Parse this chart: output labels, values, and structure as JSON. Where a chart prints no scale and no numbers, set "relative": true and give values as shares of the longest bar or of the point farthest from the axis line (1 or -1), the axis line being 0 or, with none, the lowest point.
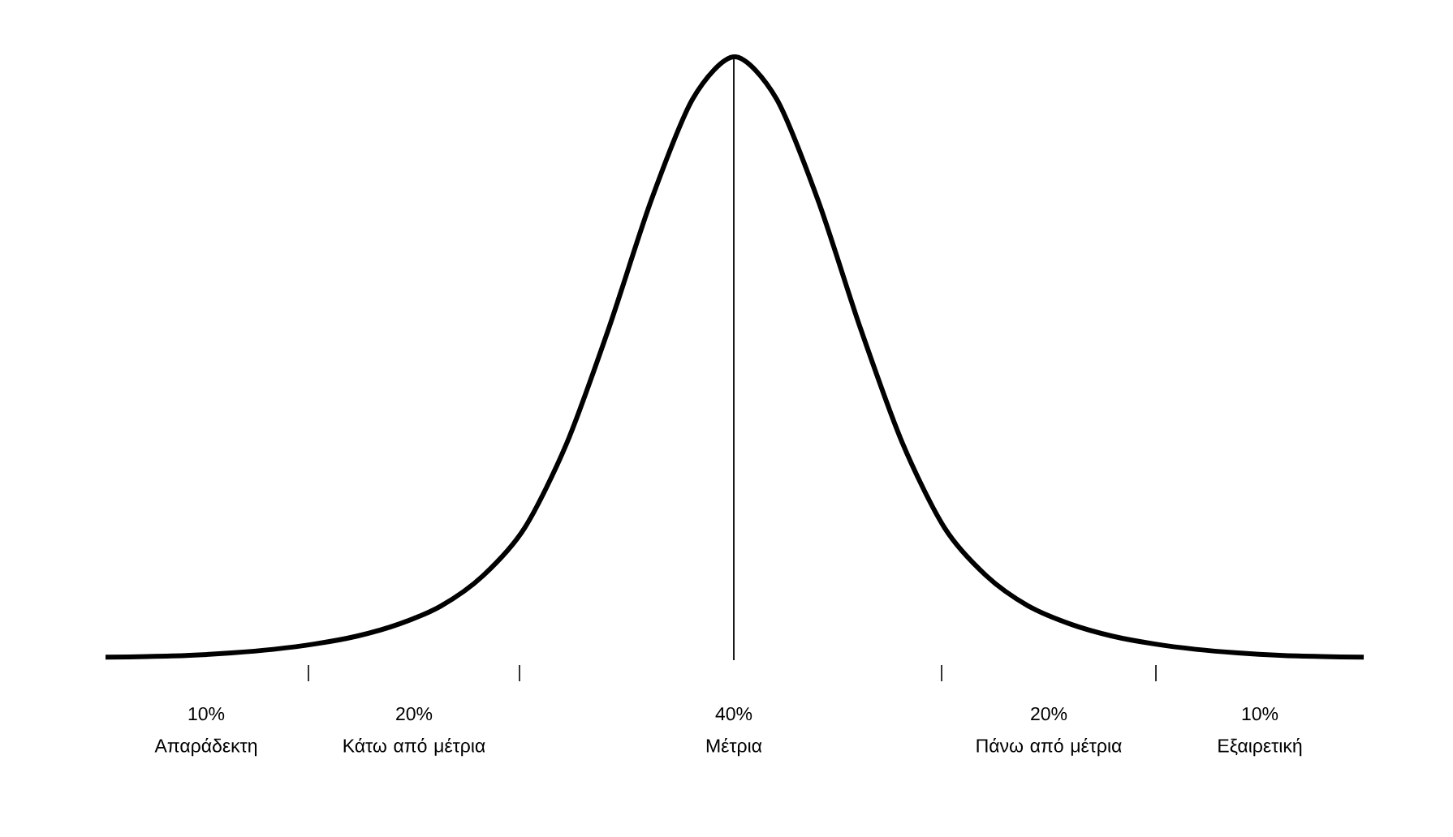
{
  "chart_data": {
    "type": "line",
    "relative": true,
    "categories": [
      null,
      null,
      null,
      null,
      null,
      null,
      null,
      null,
      null,
      null,
      null,
      null,
      null,
      null,
      null,
      null,
      null,
      null,
      null,
      null,
      null,
      null,
      null,
      null,
      null,
      null,
      null,
      null,
      null,
      null,
      null
    ],
    "series": [
      {
        "color": "#000000",
        "values": [
          0.005,
          0.006,
          0.008,
          0.012,
          0.018,
          0.027,
          0.04,
          0.06,
          0.09,
          0.14,
          0.22,
          0.36,
          0.55,
          0.76,
          0.93,
          1.0,
          0.93,
          0.76,
          0.55,
          0.36,
          0.22,
          0.14,
          0.09,
          0.06,
          0.04,
          0.027,
          0.018,
          0.012,
          0.008,
          0.006,
          0.005
        ]
      }
    ],
    "annotations": [
      "10%",
      "20%",
      "40%",
      "20%",
      "10%",
      "Απαράδεκτη",
      "Κάτω από μέτρια",
      "Μέτρια",
      "Πάνω από μέτρια",
      "Εξαιρετική"
    ]
  }
}
